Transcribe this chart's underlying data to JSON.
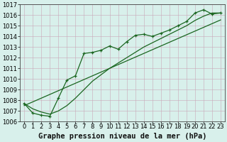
{
  "xlabel": "Graphe pression niveau de la mer (hPa)",
  "x_labels": [
    "0",
    "1",
    "2",
    "3",
    "4",
    "5",
    "6",
    "7",
    "8",
    "9",
    "10",
    "11",
    "12",
    "13",
    "14",
    "15",
    "16",
    "17",
    "18",
    "19",
    "20",
    "21",
    "22",
    "23"
  ],
  "ylim": [
    1006,
    1017
  ],
  "xlim": [
    -0.5,
    23.5
  ],
  "yticks": [
    1006,
    1007,
    1008,
    1009,
    1010,
    1011,
    1012,
    1013,
    1014,
    1015,
    1016,
    1017
  ],
  "bg_color": "#d8f0eb",
  "plot_bg_color": "#d8f0eb",
  "grid_color_major": "#c0a0b0",
  "grid_color_minor": "#d0c0c8",
  "line_color": "#1a6620",
  "line_marked": [
    1007.7,
    1006.8,
    1006.6,
    1006.5,
    1008.2,
    1009.9,
    1010.3,
    1012.4,
    1012.5,
    1012.7,
    1013.1,
    1012.8,
    1013.5,
    1014.1,
    1014.2,
    1014.0,
    1014.3,
    1014.6,
    1015.0,
    1015.4,
    1016.2,
    1016.5,
    1016.1,
    1016.2
  ],
  "line_smooth": [
    1007.7,
    1007.2,
    1006.9,
    1006.7,
    1007.0,
    1007.5,
    1008.2,
    1009.0,
    1009.8,
    1010.4,
    1011.0,
    1011.5,
    1012.0,
    1012.5,
    1013.0,
    1013.4,
    1013.8,
    1014.2,
    1014.6,
    1015.0,
    1015.5,
    1015.9,
    1016.2,
    1016.2
  ],
  "line_straight": [
    1007.5,
    1007.85,
    1008.2,
    1008.55,
    1008.9,
    1009.25,
    1009.6,
    1009.95,
    1010.3,
    1010.65,
    1011.0,
    1011.35,
    1011.7,
    1012.05,
    1012.4,
    1012.75,
    1013.1,
    1013.45,
    1013.8,
    1014.15,
    1014.5,
    1014.85,
    1015.2,
    1015.55
  ],
  "font_size_labels": 6,
  "font_size_title": 7.5
}
